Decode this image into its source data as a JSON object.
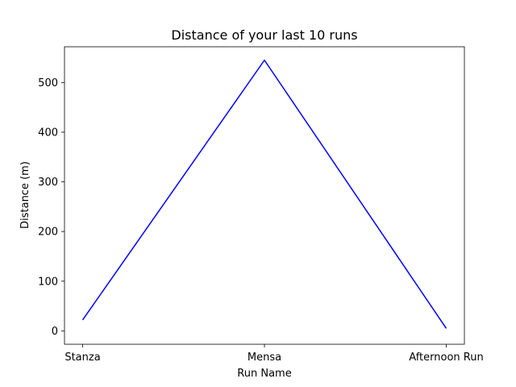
{
  "chart_data": {
    "type": "line",
    "title": "Distance of your last 10 runs",
    "xlabel": "Run Name",
    "ylabel": "Distance (m)",
    "categories": [
      "Stanza",
      "Mensa",
      "Afternoon Run"
    ],
    "series": [
      {
        "values": [
          22,
          545,
          5
        ],
        "color": "#0000ff"
      }
    ],
    "ylim": [
      -27,
      572
    ],
    "yticks": [
      0,
      100,
      200,
      300,
      400,
      500
    ],
    "grid": false,
    "legend": "none"
  }
}
